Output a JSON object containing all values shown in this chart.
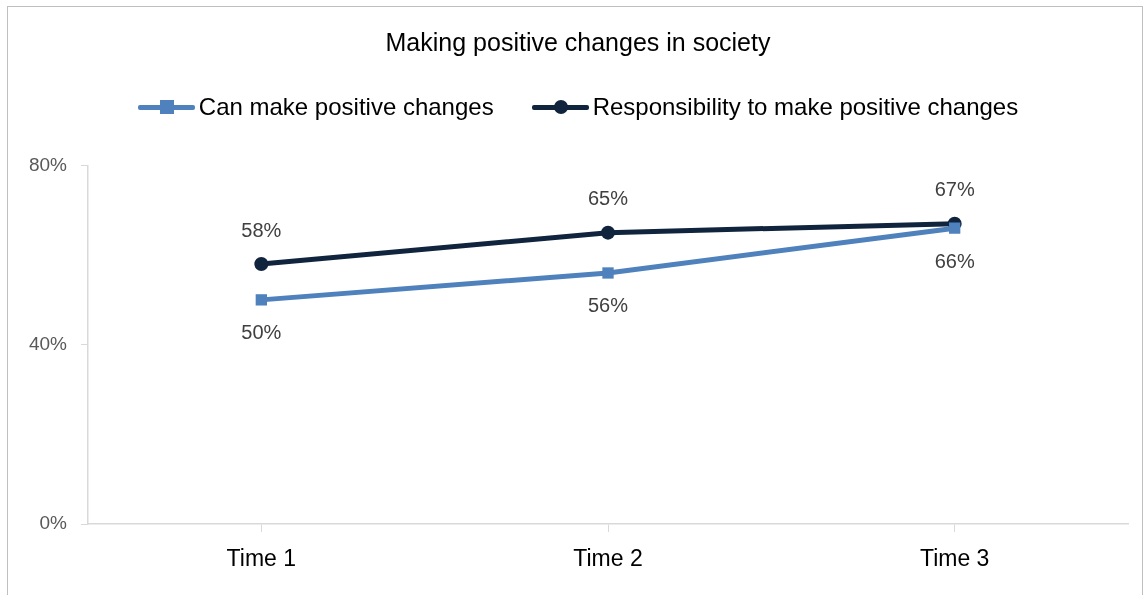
{
  "chart_data": {
    "type": "line",
    "title": "Making positive changes in society",
    "categories": [
      "Time 1",
      "Time 2",
      "Time 3"
    ],
    "series": [
      {
        "name": "Can make positive changes",
        "color": "#4f81bd",
        "marker": "square",
        "values": [
          50,
          56,
          66
        ],
        "value_labels": [
          "50%",
          "56%",
          "66%"
        ]
      },
      {
        "name": "Responsibility to make positive changes",
        "color": "#10243e",
        "marker": "circle",
        "values": [
          58,
          65,
          67
        ],
        "value_labels": [
          "58%",
          "65%",
          "67%"
        ]
      }
    ],
    "ylim": [
      0,
      80
    ],
    "yticks": [
      {
        "value": 0,
        "label": "0%"
      },
      {
        "value": 40,
        "label": "40%"
      },
      {
        "value": 80,
        "label": "80%"
      }
    ],
    "legend": "top"
  }
}
